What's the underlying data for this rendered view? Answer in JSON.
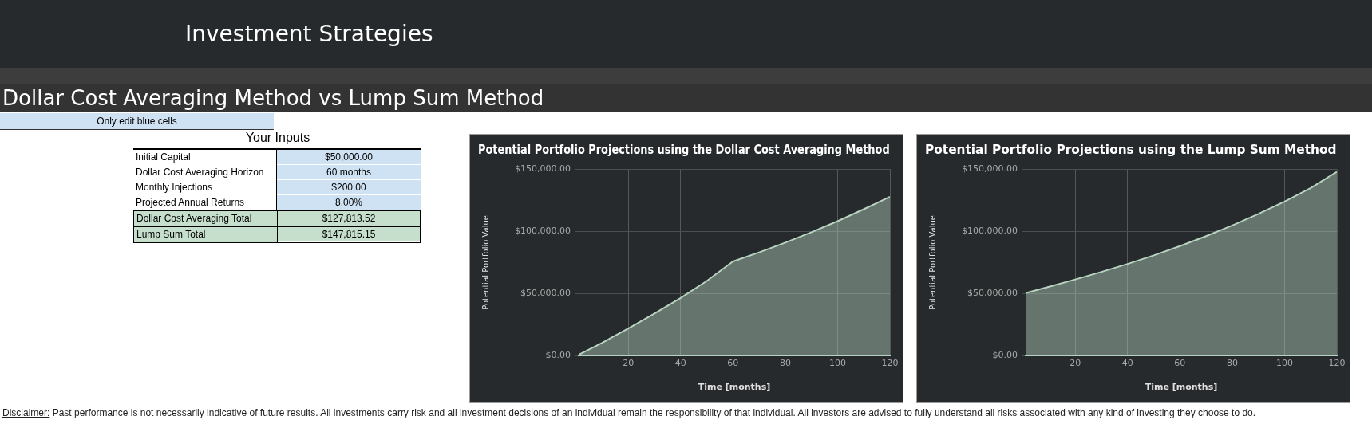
{
  "chart_data": [
    {
      "type": "other",
      "title": "Investment Strategies",
      "subtitle": "Dollar Cost Averaging Method vs Lump Sum Method",
      "annotations": [
        "Only edit blue cells",
        "Your Inputs",
        "Initial Capital",
        "$50,000.00",
        "Dollar Cost Averaging Horizon",
        "60 months",
        "Monthly Injections",
        "$200.00",
        "Projected Annual Returns",
        "8.00%",
        "Dollar Cost Averaging Total",
        "$127,813.52",
        "Lump Sum Total",
        "$147,815.15",
        "Disclaimer:",
        "Past performance is not necessarily indicative of future results. All investments carry risk and all investment decisions of an individual remain the responsibility of that individual. All investors are advised to fully understand all risks associated with any kind of investing they choose to do."
      ]
    },
    {
      "type": "area",
      "title": "Potential Portfolio Projections using the Dollar Cost Averaging Method",
      "xlabel": "Time [months]",
      "ylabel": "Potential Portfolio Value",
      "xlim": [
        1,
        120
      ],
      "xticks": [
        20,
        40,
        60,
        80,
        100,
        120
      ],
      "ylim": [
        0,
        150000
      ],
      "yticks": [
        {
          "value": 0,
          "label": "$0.00"
        },
        {
          "value": 50000,
          "label": "$50,000.00"
        },
        {
          "value": 100000,
          "label": "$100,000.00"
        },
        {
          "value": 150000,
          "label": "$150,000.00"
        }
      ],
      "grid": true,
      "legend": false,
      "series": [
        {
          "color": "#b7d3c0",
          "x": [
            1,
            10,
            20,
            30,
            40,
            50,
            60,
            70,
            80,
            90,
            100,
            110,
            120
          ],
          "values": [
            1000,
            10600,
            22000,
            34100,
            46500,
            60200,
            75900,
            83200,
            91000,
            99300,
            108200,
            117800,
            127800
          ]
        }
      ]
    },
    {
      "type": "area",
      "title": "Potential Portfolio Projections using the Lump Sum Method",
      "xlabel": "Time [months]",
      "ylabel": "Potential Portfolio Value",
      "xlim": [
        1,
        120
      ],
      "xticks": [
        20,
        40,
        60,
        80,
        100,
        120
      ],
      "ylim": [
        0,
        150000
      ],
      "yticks": [
        {
          "value": 0,
          "label": "$0.00"
        },
        {
          "value": 50000,
          "label": "$50,000.00"
        },
        {
          "value": 100000,
          "label": "$100,000.00"
        },
        {
          "value": 150000,
          "label": "$150,000.00"
        }
      ],
      "grid": true,
      "legend": false,
      "series": [
        {
          "color": "#b7d3c0",
          "x": [
            1,
            10,
            20,
            30,
            40,
            50,
            60,
            70,
            80,
            90,
            100,
            110,
            120
          ],
          "values": [
            50500,
            55600,
            61400,
            67500,
            73900,
            80800,
            88200,
            96200,
            104800,
            114100,
            124000,
            134800,
            147800
          ]
        }
      ]
    }
  ]
}
